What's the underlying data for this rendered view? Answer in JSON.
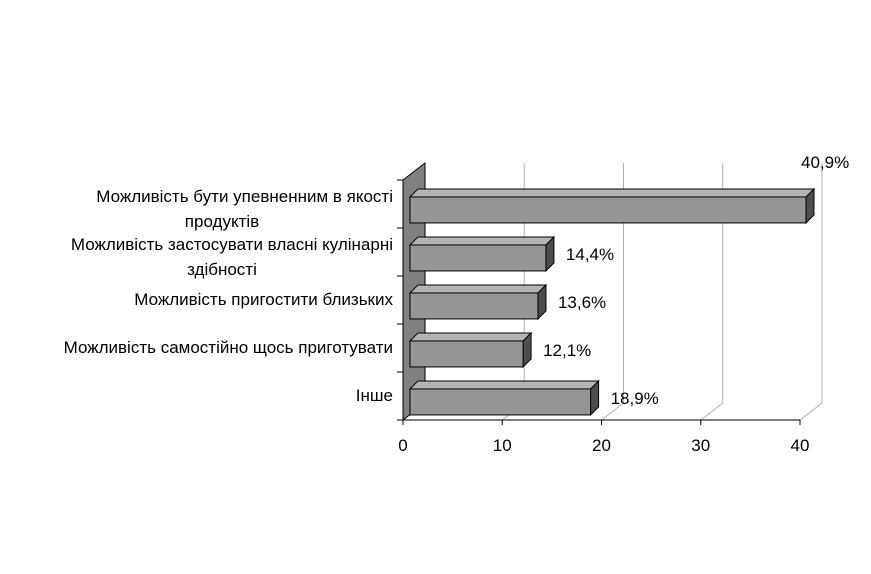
{
  "chart_data": {
    "type": "bar",
    "orientation": "horizontal",
    "style": "3d",
    "categories": [
      [
        "Можливість бути упевненним в якості",
        "продуктів"
      ],
      [
        "Можливість застосувати власні кулінарні",
        "здібності"
      ],
      [
        "Можливість пригостити близьких"
      ],
      [
        "Можливість самостійно щось приготувати"
      ],
      [
        "Інше"
      ]
    ],
    "values": [
      40.9,
      14.4,
      13.6,
      12.1,
      18.9
    ],
    "data_labels": [
      "40,9%",
      "14,4%",
      "13,6%",
      "12,1%",
      "18,9%"
    ],
    "xlim": [
      0,
      40
    ],
    "xticks": [
      "0",
      "10",
      "20",
      "30",
      "40"
    ],
    "grid": true,
    "legend": "none",
    "colors": {
      "bar_front": "#969696",
      "bar_top": "#b4b4b4",
      "bar_side": "#4d4d4d",
      "wall": "#808080",
      "gridline": "#b0b0b0",
      "axis": "#000000"
    }
  }
}
